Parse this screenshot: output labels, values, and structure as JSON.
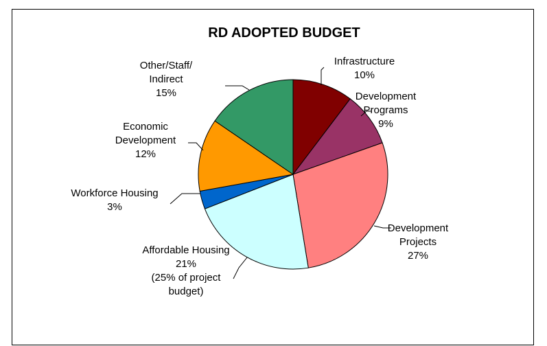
{
  "chart_data": {
    "type": "pie",
    "title": "RD ADOPTED BUDGET",
    "start_angle_deg": 0,
    "direction": "clockwise",
    "slices": [
      {
        "name": "Infrastructure",
        "value": 10,
        "color": "#800000",
        "label_lines": [
          "Infrastructure",
          "10%"
        ]
      },
      {
        "name": "Development Programs",
        "value": 9,
        "color": "#993366",
        "label_lines": [
          "Development",
          "Programs",
          "9%"
        ]
      },
      {
        "name": "Development Projects",
        "value": 27,
        "color": "#FF8080",
        "label_lines": [
          "Development",
          "Projects",
          "27%"
        ]
      },
      {
        "name": "Affordable Housing",
        "value": 21,
        "color": "#CCFFFF",
        "label_lines": [
          "Affordable Housing",
          "21%",
          "(25% of project",
          "budget)"
        ]
      },
      {
        "name": "Workforce Housing",
        "value": 3,
        "color": "#0066CC",
        "label_lines": [
          "Workforce Housing",
          "3%"
        ]
      },
      {
        "name": "Economic Development",
        "value": 12,
        "color": "#FF9900",
        "label_lines": [
          "Economic",
          "Development",
          "12%"
        ]
      },
      {
        "name": "Other/Staff/Indirect",
        "value": 15,
        "color": "#339966",
        "label_lines": [
          "Other/Staff/",
          "Indirect",
          "15%"
        ]
      }
    ]
  }
}
